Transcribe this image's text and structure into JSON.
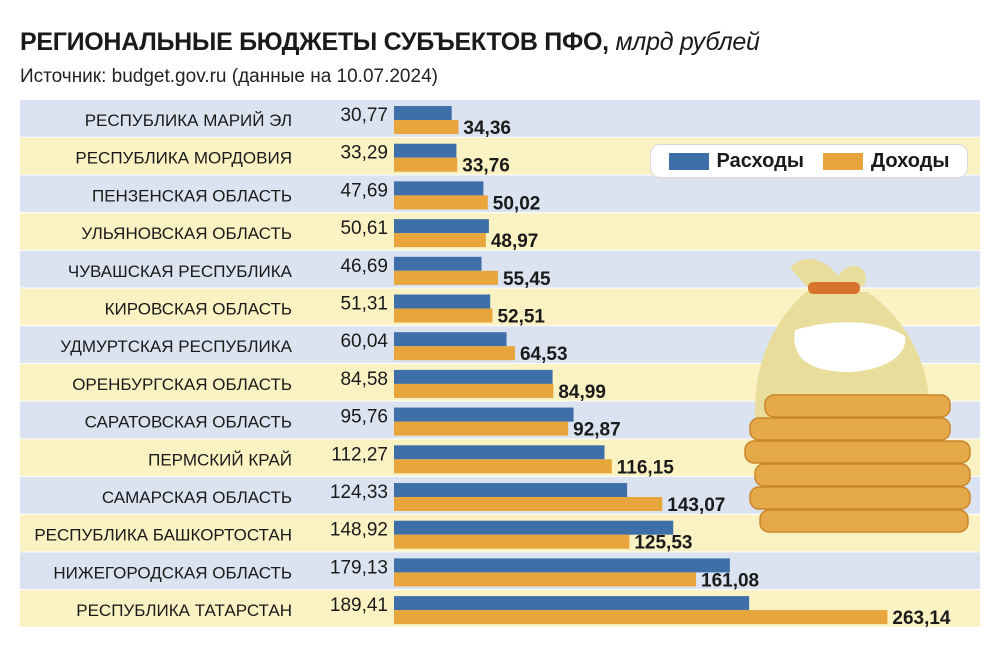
{
  "header": {
    "title": "РЕГИОНАЛЬНЫЕ БЮДЖЕТЫ СУБЪЕКТОВ ПФО,",
    "unit": "млрд рублей",
    "source": "Источник: budget.gov.ru (данные на 10.07.2024)"
  },
  "legend": {
    "expenses": "Расходы",
    "revenues": "Доходы"
  },
  "colors": {
    "expenses": "#3f6fa8",
    "revenues": "#e7a53c",
    "row_blue": "#dbe3f0",
    "row_yellow": "#fbf2c4",
    "bag": "#e8dd9a",
    "coins": "#e6a94a"
  },
  "illustration": "money-bag-coins-icon",
  "chart_data": {
    "type": "bar",
    "orientation": "horizontal",
    "title": "РЕГИОНАЛЬНЫЕ БЮДЖЕТЫ СУБЪЕКТОВ ПФО, млрд рублей",
    "categories": [
      "РЕСПУБЛИКА МАРИЙ ЭЛ",
      "РЕСПУБЛИКА МОРДОВИЯ",
      "ПЕНЗЕНСКАЯ ОБЛАСТЬ",
      "УЛЬЯНОВСКАЯ ОБЛАСТЬ",
      "ЧУВАШСКАЯ РЕСПУБЛИКА",
      "КИРОВСКАЯ ОБЛАСТЬ",
      "УДМУРТСКАЯ РЕСПУБЛИКА",
      "ОРЕНБУРГСКАЯ ОБЛАСТЬ",
      "САРАТОВСКАЯ ОБЛАСТЬ",
      "ПЕРМСКИЙ КРАЙ",
      "САМАРСКАЯ ОБЛАСТЬ",
      "РЕСПУБЛИКА БАШКОРТОСТАН",
      "НИЖЕГОРОДСКАЯ ОБЛАСТЬ",
      "РЕСПУБЛИКА ТАТАРСТАН"
    ],
    "series": [
      {
        "name": "Расходы",
        "values": [
          30.77,
          33.29,
          47.69,
          50.61,
          46.69,
          51.31,
          60.04,
          84.58,
          95.76,
          112.27,
          124.33,
          148.92,
          179.13,
          189.41
        ],
        "labels": [
          "30,77",
          "33,29",
          "47,69",
          "50,61",
          "46,69",
          "51,31",
          "60,04",
          "84,58",
          "95,76",
          "112,27",
          "124,33",
          "148,92",
          "179,13",
          "189,41"
        ]
      },
      {
        "name": "Доходы",
        "values": [
          34.36,
          33.76,
          50.02,
          48.97,
          55.45,
          52.51,
          64.53,
          84.99,
          92.87,
          116.15,
          143.07,
          125.53,
          161.08,
          263.14
        ],
        "labels": [
          "34,36",
          "33,76",
          "50,02",
          "48,97",
          "55,45",
          "52,51",
          "64,53",
          "84,99",
          "92,87",
          "116,15",
          "143,07",
          "125,53",
          "161,08",
          "263,14"
        ]
      }
    ],
    "legend_position": "top-right",
    "grid": false
  }
}
